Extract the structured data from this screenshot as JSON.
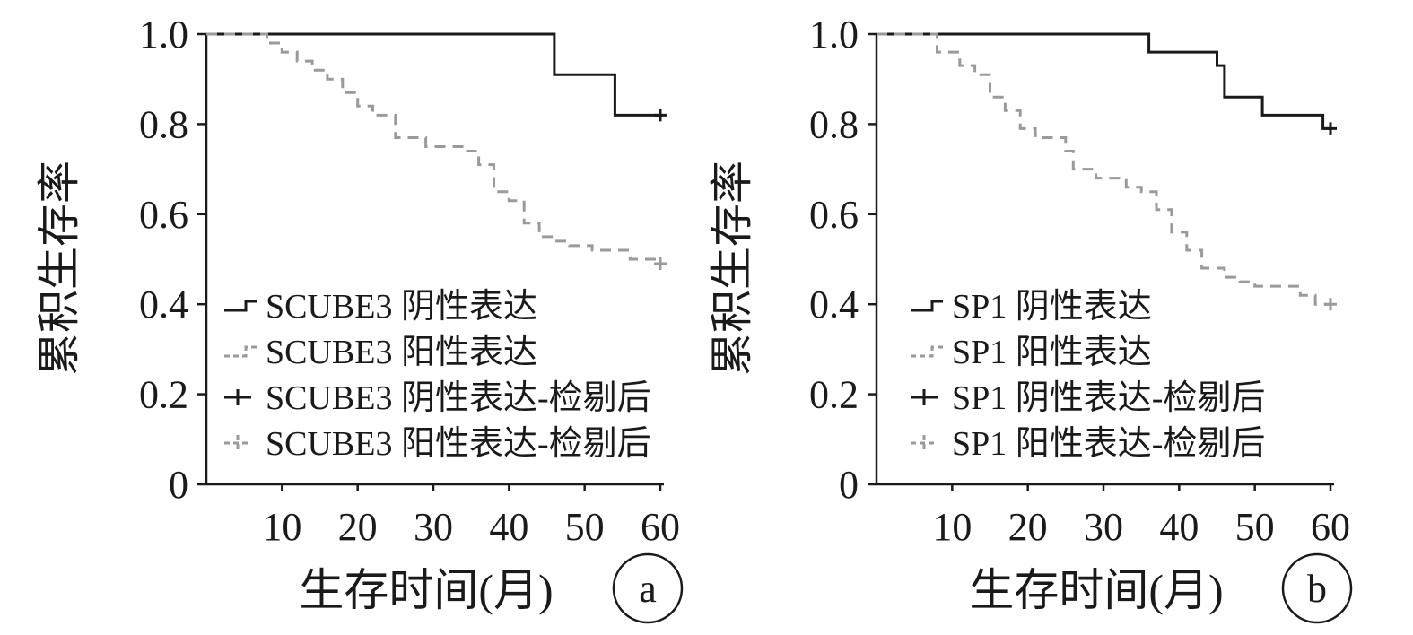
{
  "chart_data": [
    {
      "type": "line",
      "subtype": "kaplan-meier",
      "panel_label": "a",
      "xlabel": "生存时间(月)",
      "ylabel": "累积生存率",
      "xlim": [
        0,
        60
      ],
      "ylim": [
        0,
        1.0
      ],
      "x_ticks": [
        "10",
        "20",
        "30",
        "40",
        "50",
        "60"
      ],
      "y_ticks": [
        "0",
        "0.2",
        "0.4",
        "0.6",
        "0.8",
        "1.0"
      ],
      "legend_position": "middle-left",
      "series": [
        {
          "name": "SCUBE3 阴性表达",
          "color": "#1a1a1a",
          "dashed": false,
          "points": [
            [
              0,
              1.0
            ],
            [
              46,
              1.0
            ],
            [
              46,
              0.91
            ],
            [
              54,
              0.91
            ],
            [
              54,
              0.82
            ],
            [
              60,
              0.82
            ]
          ],
          "censor_x": [
            60
          ]
        },
        {
          "name": "SCUBE3 阳性表达",
          "color": "#9a9a9a",
          "dashed": true,
          "points": [
            [
              0,
              1.0
            ],
            [
              8,
              1.0
            ],
            [
              8,
              0.98
            ],
            [
              10,
              0.98
            ],
            [
              10,
              0.96
            ],
            [
              12,
              0.96
            ],
            [
              12,
              0.94
            ],
            [
              14,
              0.94
            ],
            [
              14,
              0.92
            ],
            [
              16,
              0.92
            ],
            [
              16,
              0.9
            ],
            [
              18,
              0.9
            ],
            [
              18,
              0.87
            ],
            [
              20,
              0.87
            ],
            [
              20,
              0.84
            ],
            [
              22,
              0.84
            ],
            [
              22,
              0.82
            ],
            [
              25,
              0.82
            ],
            [
              25,
              0.77
            ],
            [
              29,
              0.77
            ],
            [
              29,
              0.75
            ],
            [
              34,
              0.75
            ],
            [
              34,
              0.74
            ],
            [
              36,
              0.74
            ],
            [
              36,
              0.71
            ],
            [
              38,
              0.71
            ],
            [
              38,
              0.65
            ],
            [
              40,
              0.65
            ],
            [
              40,
              0.63
            ],
            [
              42,
              0.63
            ],
            [
              42,
              0.58
            ],
            [
              44,
              0.58
            ],
            [
              44,
              0.55
            ],
            [
              46,
              0.55
            ],
            [
              46,
              0.54
            ],
            [
              48,
              0.54
            ],
            [
              48,
              0.53
            ],
            [
              51,
              0.53
            ],
            [
              51,
              0.52
            ],
            [
              56,
              0.52
            ],
            [
              56,
              0.5
            ],
            [
              60,
              0.5
            ],
            [
              60,
              0.49
            ]
          ],
          "censor_x": [
            60
          ]
        }
      ],
      "legend": [
        {
          "label": "SCUBE3 阴性表达",
          "symbol": "step",
          "color": "#1a1a1a",
          "dashed": false
        },
        {
          "label": "SCUBE3 阳性表达",
          "symbol": "step",
          "color": "#9a9a9a",
          "dashed": true
        },
        {
          "label": "SCUBE3 阴性表达-检剔后",
          "symbol": "plus",
          "color": "#1a1a1a",
          "dashed": false
        },
        {
          "label": "SCUBE3 阳性表达-检剔后",
          "symbol": "plus",
          "color": "#9a9a9a",
          "dashed": true
        }
      ]
    },
    {
      "type": "line",
      "subtype": "kaplan-meier",
      "panel_label": "b",
      "xlabel": "生存时间(月)",
      "ylabel": "累积生存率",
      "xlim": [
        0,
        60
      ],
      "ylim": [
        0,
        1.0
      ],
      "x_ticks": [
        "10",
        "20",
        "30",
        "40",
        "50",
        "60"
      ],
      "y_ticks": [
        "0",
        "0.2",
        "0.4",
        "0.6",
        "0.8",
        "1.0"
      ],
      "legend_position": "middle-left",
      "series": [
        {
          "name": "SP1 阴性表达",
          "color": "#1a1a1a",
          "dashed": false,
          "points": [
            [
              0,
              1.0
            ],
            [
              36,
              1.0
            ],
            [
              36,
              0.96
            ],
            [
              45,
              0.96
            ],
            [
              45,
              0.93
            ],
            [
              46,
              0.93
            ],
            [
              46,
              0.86
            ],
            [
              51,
              0.86
            ],
            [
              51,
              0.82
            ],
            [
              59,
              0.82
            ],
            [
              59,
              0.79
            ],
            [
              60,
              0.79
            ]
          ],
          "censor_x": [
            60
          ]
        },
        {
          "name": "SP1 阳性表达",
          "color": "#9a9a9a",
          "dashed": true,
          "points": [
            [
              0,
              1.0
            ],
            [
              8,
              1.0
            ],
            [
              8,
              0.96
            ],
            [
              11,
              0.96
            ],
            [
              11,
              0.93
            ],
            [
              13,
              0.93
            ],
            [
              13,
              0.91
            ],
            [
              15,
              0.91
            ],
            [
              15,
              0.86
            ],
            [
              17,
              0.86
            ],
            [
              17,
              0.83
            ],
            [
              19,
              0.83
            ],
            [
              19,
              0.79
            ],
            [
              21,
              0.79
            ],
            [
              21,
              0.77
            ],
            [
              25,
              0.77
            ],
            [
              25,
              0.74
            ],
            [
              26,
              0.74
            ],
            [
              26,
              0.7
            ],
            [
              29,
              0.7
            ],
            [
              29,
              0.68
            ],
            [
              33,
              0.68
            ],
            [
              33,
              0.66
            ],
            [
              35,
              0.66
            ],
            [
              35,
              0.65
            ],
            [
              37,
              0.65
            ],
            [
              37,
              0.61
            ],
            [
              39,
              0.61
            ],
            [
              39,
              0.56
            ],
            [
              41,
              0.56
            ],
            [
              41,
              0.52
            ],
            [
              43,
              0.52
            ],
            [
              43,
              0.48
            ],
            [
              46,
              0.48
            ],
            [
              46,
              0.46
            ],
            [
              48,
              0.46
            ],
            [
              48,
              0.45
            ],
            [
              50,
              0.45
            ],
            [
              50,
              0.44
            ],
            [
              56,
              0.44
            ],
            [
              56,
              0.42
            ],
            [
              58,
              0.42
            ],
            [
              58,
              0.4
            ],
            [
              60,
              0.4
            ]
          ],
          "censor_x": [
            60
          ]
        }
      ],
      "legend": [
        {
          "label": "SP1 阴性表达",
          "symbol": "step",
          "color": "#1a1a1a",
          "dashed": false
        },
        {
          "label": "SP1 阳性表达",
          "symbol": "step",
          "color": "#9a9a9a",
          "dashed": true
        },
        {
          "label": "SP1 阴性表达-检剔后",
          "symbol": "plus",
          "color": "#1a1a1a",
          "dashed": false
        },
        {
          "label": "SP1 阳性表达-检剔后",
          "symbol": "plus",
          "color": "#9a9a9a",
          "dashed": true
        }
      ]
    }
  ]
}
